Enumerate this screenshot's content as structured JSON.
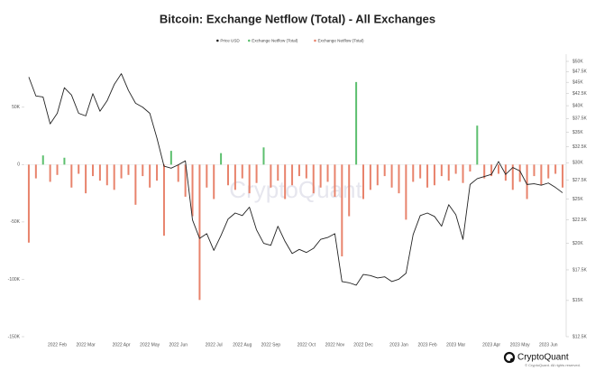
{
  "chart_data": {
    "type": "combo",
    "title": "Bitcoin: Exchange Netflow (Total) - All Exchanges",
    "watermark": "CryptoQuant",
    "brand": "CryptoQuant",
    "copyright": "© CryptoQuant. All rights reserved.",
    "categories": [
      null,
      null,
      null,
      null,
      "2022 Feb",
      null,
      null,
      null,
      "2022 Mar",
      null,
      null,
      null,
      null,
      "2022 Apr",
      null,
      null,
      null,
      "2022 May",
      null,
      null,
      null,
      "2022 Jun",
      null,
      null,
      null,
      null,
      "2022 Jul",
      null,
      null,
      null,
      "2022 Aug",
      null,
      null,
      null,
      "2022 Sep",
      null,
      null,
      null,
      null,
      "2022 Oct",
      null,
      null,
      null,
      "2022 Nov",
      null,
      null,
      null,
      "2022 Dec",
      null,
      null,
      null,
      null,
      "2023 Jan",
      null,
      null,
      null,
      "2023 Feb",
      null,
      null,
      null,
      "2023 Mar",
      null,
      null,
      null,
      null,
      "2023 Apr",
      null,
      null,
      null,
      "2023 May",
      null,
      null,
      null,
      "2023 Jun",
      null,
      null
    ],
    "series": [
      {
        "name": "Price USD",
        "type": "line",
        "axis": "y2",
        "color": "#222222",
        "values": [
          46200,
          42000,
          41800,
          36500,
          38500,
          43800,
          42200,
          38500,
          38000,
          42500,
          38900,
          41000,
          44500,
          47000,
          43200,
          40500,
          39700,
          38500,
          34000,
          29500,
          29200,
          29700,
          30300,
          22500,
          20500,
          21000,
          19300,
          20800,
          22600,
          23300,
          23000,
          24000,
          21400,
          20000,
          19800,
          21800,
          20200,
          19000,
          19400,
          19100,
          19500,
          20400,
          20600,
          21000,
          16500,
          16400,
          16200,
          17100,
          17000,
          16800,
          16900,
          16500,
          16700,
          17200,
          20900,
          23000,
          23300,
          22900,
          21800,
          24300,
          23100,
          20400,
          26900,
          27700,
          28000,
          28300,
          30200,
          28300,
          29300,
          28800,
          26900,
          27000,
          26800,
          27100,
          26500,
          25800
        ]
      },
      {
        "name": "Exchange Netflow (Total)",
        "type": "bar",
        "color": "#5cbf6e",
        "values": [
          null,
          null,
          8000,
          null,
          null,
          6000,
          null,
          null,
          null,
          null,
          null,
          null,
          null,
          null,
          null,
          null,
          null,
          null,
          null,
          null,
          12000,
          null,
          null,
          null,
          null,
          null,
          null,
          10000,
          null,
          null,
          null,
          null,
          null,
          15000,
          null,
          null,
          null,
          null,
          null,
          null,
          null,
          null,
          null,
          null,
          null,
          null,
          72000,
          null,
          null,
          null,
          null,
          null,
          null,
          null,
          null,
          null,
          null,
          null,
          null,
          null,
          null,
          null,
          null,
          34000,
          null,
          null,
          null,
          null,
          null,
          null,
          null,
          null,
          null,
          null,
          null,
          null
        ]
      },
      {
        "name": "Exchange Netflow (Total)",
        "type": "bar",
        "color": "#e8836c",
        "values": [
          -68000,
          -12000,
          null,
          -15000,
          -9000,
          null,
          -20000,
          -8000,
          -25000,
          -10000,
          -14000,
          -18000,
          -22000,
          -12000,
          -9000,
          -35000,
          -10000,
          -20000,
          -14000,
          -62000,
          null,
          -15000,
          -28000,
          -45000,
          -118000,
          -20000,
          -30000,
          null,
          -18000,
          -22000,
          -12000,
          -25000,
          -16000,
          null,
          -20000,
          -14000,
          -30000,
          -18000,
          -10000,
          -12000,
          -25000,
          -20000,
          -15000,
          -28000,
          -80000,
          -45000,
          null,
          -30000,
          -22000,
          -18000,
          -10000,
          -20000,
          -25000,
          -48000,
          -15000,
          -12000,
          -20000,
          -18000,
          -10000,
          -14000,
          -8000,
          -16000,
          -6000,
          null,
          -12000,
          -10000,
          -8000,
          -14000,
          -22000,
          -15000,
          -30000,
          -10000,
          -18000,
          -12000,
          -8000,
          -20000
        ]
      }
    ],
    "ylim": [
      -150000,
      90000
    ],
    "yticks": [
      {
        "value": 50000,
        "label": "50K"
      },
      0,
      {
        "value": -50000,
        "label": "-50K"
      },
      {
        "value": -100000,
        "label": "-100K"
      },
      {
        "value": -150000,
        "label": "-150K"
      }
    ],
    "y2lim": [
      12500,
      50000
    ],
    "y2log": true,
    "y2ticks": [
      {
        "value": 50000,
        "label": "$50K"
      },
      {
        "value": 47500,
        "label": "$47.5K"
      },
      {
        "value": 45000,
        "label": "$45K"
      },
      {
        "value": 42500,
        "label": "$42.5K"
      },
      {
        "value": 40000,
        "label": "$40K"
      },
      {
        "value": 37500,
        "label": "$37.5K"
      },
      {
        "value": 35000,
        "label": "$35K"
      },
      {
        "value": 32500,
        "label": "$32.5K"
      },
      {
        "value": 30000,
        "label": "$30K"
      },
      {
        "value": 27500,
        "label": "$27.5K"
      },
      {
        "value": 25000,
        "label": "$25K"
      },
      {
        "value": 22500,
        "label": "$22.5K"
      },
      {
        "value": 20000,
        "label": "$20K"
      },
      {
        "value": 17500,
        "label": "$17.5K"
      },
      {
        "value": 15000,
        "label": "$15K"
      },
      {
        "value": 12500,
        "label": "$12.5K"
      }
    ],
    "grid": false,
    "legend": "top"
  }
}
